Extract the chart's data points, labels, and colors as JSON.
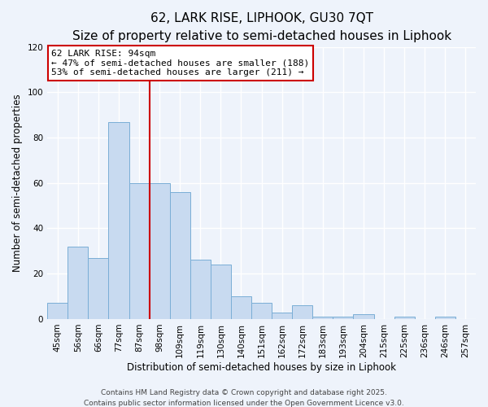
{
  "title": "62, LARK RISE, LIPHOOK, GU30 7QT",
  "subtitle": "Size of property relative to semi-detached houses in Liphook",
  "xlabel": "Distribution of semi-detached houses by size in Liphook",
  "ylabel": "Number of semi-detached properties",
  "bar_labels": [
    "45sqm",
    "56sqm",
    "66sqm",
    "77sqm",
    "87sqm",
    "98sqm",
    "109sqm",
    "119sqm",
    "130sqm",
    "140sqm",
    "151sqm",
    "162sqm",
    "172sqm",
    "183sqm",
    "193sqm",
    "204sqm",
    "215sqm",
    "225sqm",
    "236sqm",
    "246sqm",
    "257sqm"
  ],
  "bar_values": [
    7,
    32,
    27,
    87,
    60,
    60,
    56,
    26,
    24,
    10,
    7,
    3,
    6,
    1,
    1,
    2,
    0,
    1,
    0,
    1,
    0
  ],
  "bar_color": "#c8daf0",
  "bar_edge_color": "#7aaed6",
  "vline_x": 4.5,
  "vline_color": "#cc0000",
  "annotation_line1": "62 LARK RISE: 94sqm",
  "annotation_line2": "← 47% of semi-detached houses are smaller (188)",
  "annotation_line3": "53% of semi-detached houses are larger (211) →",
  "annotation_box_color": "#ffffff",
  "annotation_box_edge": "#cc0000",
  "ylim": [
    0,
    120
  ],
  "yticks": [
    0,
    20,
    40,
    60,
    80,
    100,
    120
  ],
  "background_color": "#eef3fb",
  "grid_color": "#ffffff",
  "footer_line1": "Contains HM Land Registry data © Crown copyright and database right 2025.",
  "footer_line2": "Contains public sector information licensed under the Open Government Licence v3.0.",
  "title_fontsize": 11,
  "subtitle_fontsize": 9,
  "axis_label_fontsize": 8.5,
  "tick_fontsize": 7.5,
  "annotation_fontsize": 8,
  "footer_fontsize": 6.5
}
